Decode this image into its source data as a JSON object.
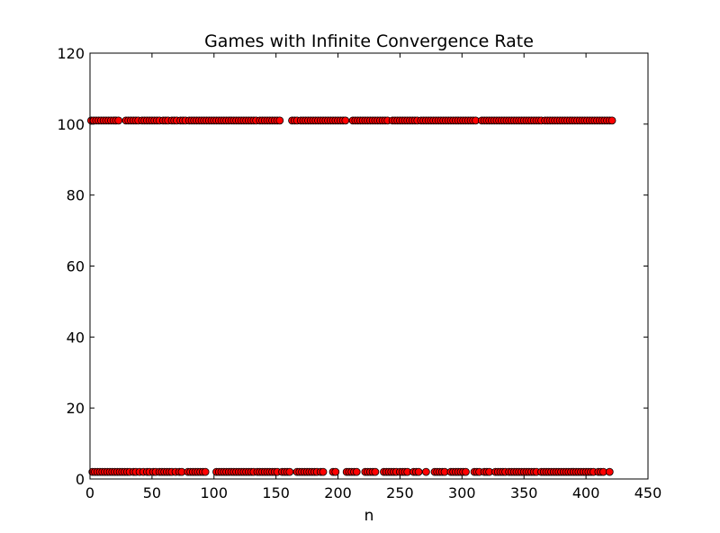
{
  "chart_data": {
    "type": "scatter",
    "title": "Games with Infinite Convergence Rate",
    "xlabel": "n",
    "ylabel": "",
    "xlim": [
      0,
      450
    ],
    "ylim": [
      0,
      120
    ],
    "xticks": [
      0,
      50,
      100,
      150,
      200,
      250,
      300,
      350,
      400,
      450
    ],
    "yticks": [
      0,
      20,
      40,
      60,
      80,
      100,
      120
    ],
    "grid": false,
    "legend": "none",
    "marker_color": "#ff0000",
    "marker_edge": "#000000",
    "series": [
      {
        "levels": [
          {
            "y": 101,
            "x": [
              1,
              3,
              5,
              7,
              9,
              11,
              13,
              15,
              17,
              19,
              21,
              23,
              29,
              31,
              33,
              35,
              37,
              39,
              42,
              44,
              46,
              48,
              50,
              52,
              54,
              56,
              59,
              61,
              63,
              66,
              68,
              70,
              73,
              75,
              77,
              80,
              82,
              84,
              86,
              88,
              90,
              92,
              94,
              96,
              98,
              100,
              102,
              104,
              106,
              108,
              110,
              112,
              114,
              116,
              118,
              120,
              122,
              124,
              126,
              128,
              130,
              132,
              134,
              137,
              139,
              141,
              143,
              145,
              147,
              149,
              151,
              153,
              163,
              165,
              167,
              170,
              172,
              174,
              176,
              178,
              180,
              182,
              184,
              186,
              188,
              190,
              192,
              194,
              196,
              198,
              200,
              202,
              204,
              206,
              212,
              214,
              216,
              218,
              220,
              222,
              224,
              226,
              228,
              230,
              232,
              234,
              236,
              238,
              240,
              244,
              246,
              248,
              250,
              252,
              254,
              256,
              258,
              260,
              262,
              264,
              267,
              269,
              271,
              273,
              275,
              277,
              279,
              281,
              283,
              285,
              287,
              289,
              291,
              293,
              295,
              297,
              299,
              301,
              303,
              305,
              307,
              309,
              311,
              316,
              318,
              320,
              322,
              324,
              326,
              328,
              330,
              332,
              334,
              336,
              338,
              340,
              342,
              344,
              346,
              348,
              350,
              352,
              354,
              356,
              358,
              360,
              362,
              364,
              367,
              369,
              371,
              373,
              375,
              377,
              379,
              381,
              383,
              385,
              387,
              389,
              391,
              393,
              395,
              397,
              399,
              401,
              403,
              405,
              407,
              409,
              411,
              413,
              415,
              417,
              419,
              421
            ]
          },
          {
            "y": 2,
            "x": [
              2,
              4,
              6,
              8,
              10,
              12,
              14,
              16,
              18,
              20,
              22,
              24,
              26,
              28,
              30,
              32,
              35,
              37,
              40,
              43,
              46,
              48,
              51,
              53,
              56,
              58,
              60,
              62,
              64,
              66,
              69,
              72,
              74,
              79,
              81,
              83,
              85,
              87,
              89,
              91,
              93,
              102,
              104,
              106,
              108,
              110,
              112,
              114,
              116,
              118,
              120,
              122,
              124,
              126,
              128,
              130,
              132,
              135,
              137,
              139,
              141,
              143,
              145,
              147,
              149,
              151,
              155,
              157,
              159,
              161,
              167,
              169,
              171,
              173,
              175,
              177,
              179,
              181,
              183,
              186,
              188,
              196,
              198,
              207,
              209,
              211,
              213,
              215,
              222,
              224,
              226,
              228,
              230,
              237,
              239,
              241,
              243,
              245,
              247,
              250,
              252,
              254,
              256,
              261,
              263,
              265,
              271,
              278,
              280,
              282,
              284,
              286,
              291,
              293,
              295,
              297,
              299,
              301,
              303,
              310,
              312,
              314,
              318,
              320,
              322,
              327,
              329,
              331,
              333,
              335,
              338,
              340,
              342,
              344,
              346,
              348,
              350,
              352,
              354,
              356,
              358,
              360,
              364,
              366,
              368,
              370,
              372,
              374,
              376,
              378,
              380,
              382,
              384,
              386,
              388,
              390,
              392,
              394,
              396,
              398,
              400,
              402,
              404,
              406,
              410,
              412,
              414,
              419
            ]
          }
        ]
      }
    ]
  }
}
